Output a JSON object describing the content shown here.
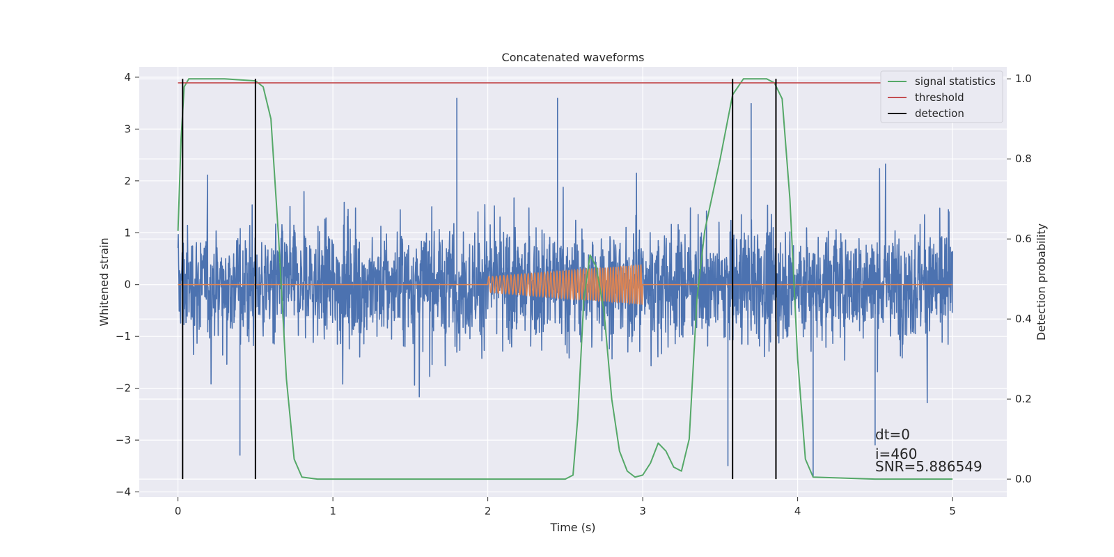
{
  "chart_data": {
    "type": "line",
    "title": "Concatenated waveforms",
    "xlabel": "Time (s)",
    "ylabel": "Whitened strain",
    "y2label": "Detection probability",
    "xlim": [
      -0.25,
      5.35
    ],
    "ylim": [
      -4.1,
      4.2
    ],
    "y2lim": [
      -0.045,
      1.03
    ],
    "x_ticks": [
      0,
      1,
      2,
      3,
      4,
      5
    ],
    "x_tick_labels": [
      "0",
      "1",
      "2",
      "3",
      "4",
      "5"
    ],
    "y_ticks": [
      -4,
      -3,
      -2,
      -1,
      0,
      1,
      2,
      3,
      4
    ],
    "y_tick_labels": [
      "−4",
      "−3",
      "−2",
      "−1",
      "0",
      "1",
      "2",
      "3",
      "4"
    ],
    "y2_ticks": [
      0.0,
      0.2,
      0.4,
      0.6,
      0.8,
      1.0
    ],
    "y2_tick_labels": [
      "0.0",
      "0.2",
      "0.4",
      "0.6",
      "0.8",
      "1.0"
    ],
    "grid": true,
    "legend_position": "upper right",
    "series": [
      {
        "name": "",
        "kind": "noise",
        "axis": "left",
        "color": "#4c72b0",
        "x_range": [
          0,
          5
        ],
        "envelope_amplitude": 2.4,
        "peaks": [
          {
            "x": 1.8,
            "y": 3.6
          },
          {
            "x": 2.45,
            "y": 3.6
          },
          {
            "x": 0.5,
            "y": 3.5
          },
          {
            "x": 3.7,
            "y": 3.5
          },
          {
            "x": 0.4,
            "y": -3.3
          },
          {
            "x": 4.1,
            "y": -3.7
          },
          {
            "x": 3.55,
            "y": -3.5
          },
          {
            "x": 4.5,
            "y": -3.1
          }
        ]
      },
      {
        "name": "",
        "kind": "chirp",
        "axis": "left",
        "color": "#dd8452",
        "x_range": [
          0,
          5
        ],
        "chirp_start": 2.0,
        "chirp_end": 3.0,
        "amplitude_start": 0.15,
        "amplitude_end": 0.38
      },
      {
        "name": "signal statistics",
        "axis": "right",
        "color": "#55a868",
        "x": [
          0.0,
          0.02,
          0.04,
          0.07,
          0.1,
          0.3,
          0.5,
          0.55,
          0.6,
          0.65,
          0.7,
          0.75,
          0.8,
          0.9,
          1.5,
          2.0,
          2.5,
          2.55,
          2.58,
          2.62,
          2.66,
          2.7,
          2.75,
          2.8,
          2.85,
          2.9,
          2.95,
          3.0,
          3.05,
          3.1,
          3.15,
          3.2,
          3.25,
          3.3,
          3.35,
          3.4,
          3.5,
          3.58,
          3.65,
          3.7,
          3.8,
          3.85,
          3.9,
          3.95,
          4.0,
          4.05,
          4.1,
          4.5,
          5.0
        ],
        "y": [
          0.62,
          0.85,
          0.98,
          1.0,
          1.0,
          1.0,
          0.995,
          0.98,
          0.9,
          0.6,
          0.25,
          0.05,
          0.005,
          0.0,
          0.0,
          0.0,
          0.0,
          0.01,
          0.15,
          0.45,
          0.56,
          0.53,
          0.42,
          0.2,
          0.07,
          0.02,
          0.005,
          0.01,
          0.04,
          0.09,
          0.07,
          0.03,
          0.02,
          0.1,
          0.45,
          0.62,
          0.8,
          0.96,
          1.0,
          1.0,
          1.0,
          0.99,
          0.95,
          0.7,
          0.3,
          0.05,
          0.005,
          0.0,
          0.0
        ]
      },
      {
        "name": "threshold",
        "axis": "right",
        "color": "#c44e52",
        "x": [
          0,
          5
        ],
        "y": [
          0.99,
          0.99
        ]
      },
      {
        "name": "detection",
        "axis": "right",
        "kind": "vlines",
        "color": "#000000",
        "x": [
          0.03,
          0.5,
          3.58,
          3.86
        ],
        "y_range": [
          0.0,
          1.0
        ]
      }
    ],
    "annotations": [
      "dt=0",
      "i=460",
      "SNR=5.886549"
    ]
  }
}
